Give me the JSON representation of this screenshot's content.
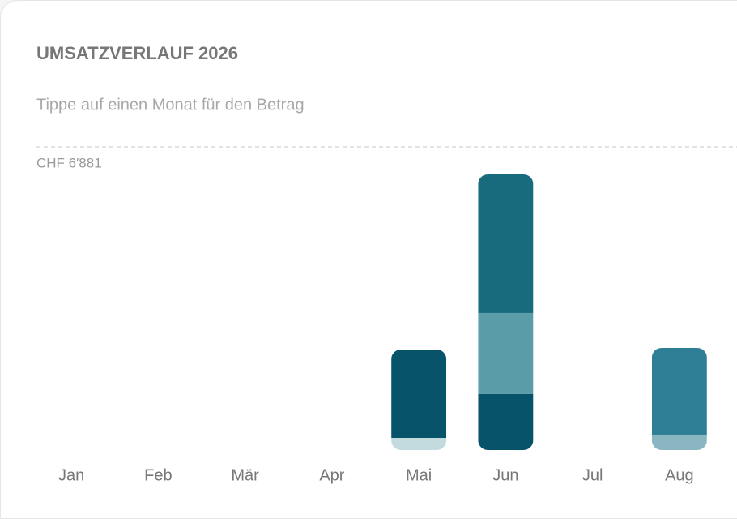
{
  "chart_data": {
    "type": "bar",
    "stacked": true,
    "title": "UMSATZVERLAUF 2026",
    "subtitle": "Tippe auf einen Monat für den Betrag",
    "categories": [
      "Jan",
      "Feb",
      "Mär",
      "Apr",
      "Mai",
      "Jun",
      "Jul",
      "Aug"
    ],
    "series": [
      {
        "values": [
          null,
          null,
          null,
          null,
          276,
          1270,
          null,
          350
        ],
        "colors": [
          null,
          null,
          null,
          null,
          "#c3dadf",
          "#07546a",
          null,
          "#8ab6c1"
        ]
      },
      {
        "values": [
          null,
          null,
          null,
          null,
          2005,
          1840,
          null,
          1969
        ],
        "colors": [
          null,
          null,
          null,
          null,
          "#07546a",
          "#5b9ca9",
          null,
          "#2e7f95"
        ]
      },
      {
        "values": [
          null,
          null,
          null,
          null,
          null,
          3146,
          null,
          null
        ],
        "colors": [
          null,
          null,
          null,
          null,
          null,
          "#186a7d",
          null,
          null
        ]
      }
    ],
    "ylim": [
      0,
      6881
    ],
    "yticks": [
      {
        "value": 6881,
        "label": "CHF 6′881"
      }
    ],
    "grid": true
  }
}
